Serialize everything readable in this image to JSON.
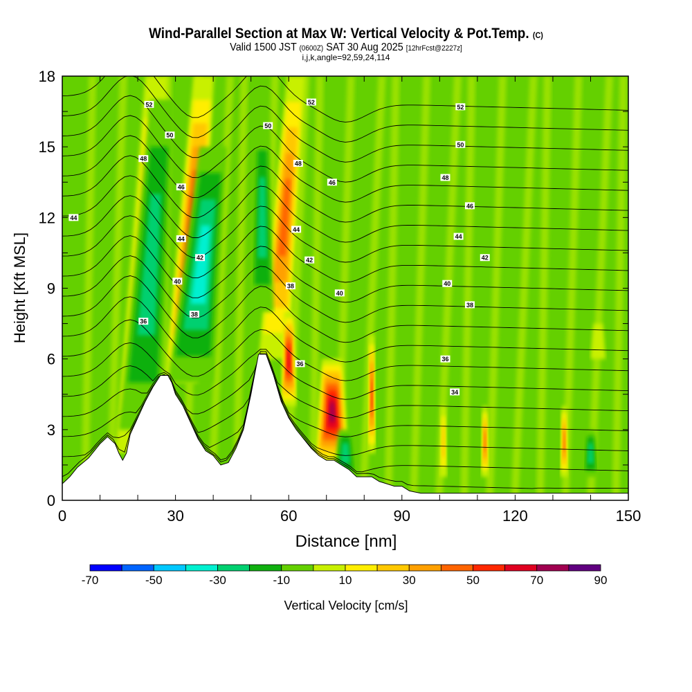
{
  "chart_data": {
    "type": "heatmap",
    "title": "Wind-Parallel Section at Max W: Vertical Velocity & Pot.Temp.",
    "title_mark": "(C)",
    "subtitle_main": "Valid 1500 JST",
    "subtitle_utc": "(0600Z)",
    "subtitle_date": "SAT 30 Aug 2025",
    "subtitle_fcst": "[12hrFcst@2227z]",
    "info": "i,j,k,angle=92,59,24,114",
    "xlabel": "Distance [nm]",
    "ylabel": "Height [Kft MSL]",
    "xlim": [
      0,
      150
    ],
    "ylim": [
      0,
      18
    ],
    "xticks": [
      "0",
      "30",
      "60",
      "90",
      "120",
      "150"
    ],
    "yticks": [
      "0",
      "3",
      "6",
      "9",
      "12",
      "15",
      "18"
    ],
    "colorbar": {
      "label": "Vertical Velocity [cm/s]",
      "levels": [
        -70,
        -60,
        -50,
        -40,
        -30,
        -20,
        -10,
        0,
        10,
        20,
        30,
        40,
        50,
        60,
        70,
        80,
        90
      ],
      "tick_labels": [
        "-70",
        "-50",
        "-30",
        "-10",
        "10",
        "30",
        "50",
        "70",
        "90"
      ],
      "colors": [
        "#0000ff",
        "#0064ff",
        "#00c8ff",
        "#00f0d0",
        "#00d070",
        "#10b010",
        "#64d000",
        "#c8f000",
        "#ffee00",
        "#ffc800",
        "#ffa000",
        "#ff6400",
        "#ff2800",
        "#e00020",
        "#a00050",
        "#600080"
      ]
    },
    "terrain_kft": {
      "x": [
        0,
        2,
        4,
        7,
        10,
        12,
        14,
        15,
        16,
        17,
        18,
        20,
        22,
        24,
        26,
        28,
        29,
        30,
        32,
        34,
        36,
        38,
        40,
        42,
        44,
        46,
        48,
        50,
        52,
        54,
        56,
        58,
        60,
        62,
        64,
        66,
        68,
        70,
        72,
        74,
        76,
        78,
        80,
        82,
        84,
        86,
        88,
        90,
        92,
        95,
        100,
        150
      ],
      "h": [
        0.7,
        1.0,
        1.4,
        1.8,
        2.4,
        2.7,
        2.4,
        2.0,
        1.7,
        2.0,
        2.8,
        3.5,
        4.2,
        4.8,
        5.3,
        5.3,
        5.0,
        4.5,
        4.0,
        3.3,
        2.6,
        2.1,
        1.9,
        1.5,
        1.6,
        2.2,
        3.0,
        4.5,
        6.2,
        6.2,
        5.3,
        4.2,
        3.5,
        3.0,
        2.6,
        2.2,
        1.9,
        1.7,
        1.7,
        1.5,
        1.3,
        1.0,
        1.0,
        1.0,
        0.8,
        0.7,
        0.6,
        0.6,
        0.4,
        0.3,
        0.3,
        0.3
      ]
    },
    "vertical_velocity_features": [
      {
        "x0": 14,
        "x1": 24,
        "h0": 2,
        "h1": 18,
        "w": 40
      },
      {
        "x0": 27,
        "x1": 36,
        "h0": 5,
        "h1": 18,
        "w": 60
      },
      {
        "x0": 15,
        "x1": 26,
        "h0": 3,
        "h1": 17,
        "w": -30
      },
      {
        "x0": 28,
        "x1": 40,
        "h0": 5,
        "h1": 15,
        "w": -40
      },
      {
        "x0": 52,
        "x1": 60,
        "h0": 6,
        "h1": 18,
        "w": 50
      },
      {
        "x0": 50,
        "x1": 56,
        "h0": 8,
        "h1": 16,
        "w": -30
      },
      {
        "x0": 58,
        "x1": 62,
        "h0": 4,
        "h1": 8,
        "w": 70
      },
      {
        "x0": 67,
        "x1": 76,
        "h0": 1.5,
        "h1": 6,
        "w": 85
      },
      {
        "x0": 72,
        "x1": 78,
        "h0": 1,
        "h1": 3,
        "w": -30
      },
      {
        "x0": 81,
        "x1": 83,
        "h0": 2,
        "h1": 7,
        "w": 60
      },
      {
        "x0": 100,
        "x1": 102,
        "h0": 1,
        "h1": 4,
        "w": 30
      },
      {
        "x0": 111,
        "x1": 113,
        "h0": 1,
        "h1": 4,
        "w": 50
      },
      {
        "x0": 132,
        "x1": 134,
        "h0": 1,
        "h1": 4,
        "w": 50
      },
      {
        "x0": 138,
        "x1": 142,
        "h0": 1,
        "h1": 3,
        "w": -30
      },
      {
        "x0": 140,
        "x1": 144,
        "h0": 6,
        "h1": 7.5,
        "w": 15
      }
    ],
    "theta_contours": {
      "levels": [
        34,
        35,
        36,
        37,
        38,
        39,
        40,
        41,
        42,
        43,
        44,
        45,
        46,
        47,
        48,
        49,
        50,
        51,
        52,
        53
      ],
      "labels": [
        {
          "v": "44",
          "x": 3,
          "h": 12
        },
        {
          "v": "52",
          "x": 23,
          "h": 16.8
        },
        {
          "v": "50",
          "x": 28.5,
          "h": 15.5
        },
        {
          "v": "48",
          "x": 21.5,
          "h": 14.5
        },
        {
          "v": "46",
          "x": 31.5,
          "h": 13.3
        },
        {
          "v": "44",
          "x": 31.5,
          "h": 11.1
        },
        {
          "v": "42",
          "x": 36.5,
          "h": 10.3
        },
        {
          "v": "40",
          "x": 30.5,
          "h": 9.3
        },
        {
          "v": "38",
          "x": 35,
          "h": 7.9
        },
        {
          "v": "36",
          "x": 21.5,
          "h": 7.6
        },
        {
          "v": "52",
          "x": 66,
          "h": 16.9
        },
        {
          "v": "50",
          "x": 54.5,
          "h": 15.9
        },
        {
          "v": "48",
          "x": 62.5,
          "h": 14.3
        },
        {
          "v": "46",
          "x": 71.5,
          "h": 13.5
        },
        {
          "v": "44",
          "x": 62,
          "h": 11.5
        },
        {
          "v": "42",
          "x": 65.5,
          "h": 10.2
        },
        {
          "v": "38",
          "x": 60.5,
          "h": 9.1
        },
        {
          "v": "40",
          "x": 73.5,
          "h": 8.8
        },
        {
          "v": "36",
          "x": 63,
          "h": 5.8
        },
        {
          "v": "52",
          "x": 105.5,
          "h": 16.7
        },
        {
          "v": "50",
          "x": 105.5,
          "h": 15.1
        },
        {
          "v": "48",
          "x": 101.5,
          "h": 13.7
        },
        {
          "v": "46",
          "x": 108,
          "h": 12.5
        },
        {
          "v": "44",
          "x": 105,
          "h": 11.2
        },
        {
          "v": "42",
          "x": 112,
          "h": 10.3
        },
        {
          "v": "40",
          "x": 102,
          "h": 9.2
        },
        {
          "v": "38",
          "x": 108,
          "h": 8.3
        },
        {
          "v": "36",
          "x": 101.5,
          "h": 6.0
        },
        {
          "v": "34",
          "x": 104,
          "h": 4.6
        }
      ]
    }
  }
}
